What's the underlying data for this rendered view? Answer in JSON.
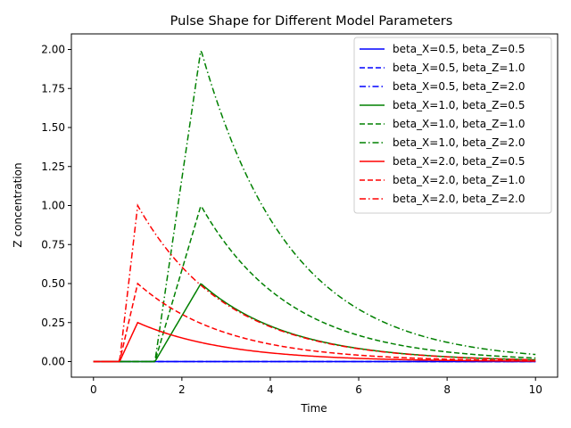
{
  "chart_data": {
    "type": "line",
    "title": "Pulse Shape for Different Model Parameters",
    "xlabel": "Time",
    "ylabel": "Z concentration",
    "xlim": [
      -0.5,
      10.5
    ],
    "ylim": [
      -0.1,
      2.1
    ],
    "xticks": [
      0,
      2,
      4,
      6,
      8,
      10
    ],
    "yticks": [
      0.0,
      0.25,
      0.5,
      0.75,
      1.0,
      1.25,
      1.5,
      1.75,
      2.0
    ],
    "ytick_labels": [
      "0.00",
      "0.25",
      "0.50",
      "0.75",
      "1.00",
      "1.25",
      "1.50",
      "1.75",
      "2.00"
    ],
    "grid": false,
    "legend_position": "top-right",
    "series": [
      {
        "name": "beta_X=0.5, beta_Z=0.5",
        "color": "#0000ff",
        "style": "solid",
        "onset": 10,
        "peak": 0.0,
        "peak_time": 10,
        "decay": 0.5
      },
      {
        "name": "beta_X=0.5, beta_Z=1.0",
        "color": "#0000ff",
        "style": "dashed",
        "onset": 10,
        "peak": 0.0,
        "peak_time": 10,
        "decay": 0.5
      },
      {
        "name": "beta_X=0.5, beta_Z=2.0",
        "color": "#0000ff",
        "style": "dashdot",
        "onset": 10,
        "peak": 0.0,
        "peak_time": 10,
        "decay": 0.5
      },
      {
        "name": "beta_X=1.0, beta_Z=0.5",
        "color": "#008000",
        "style": "solid",
        "onset": 1.39,
        "peak": 0.5,
        "peak_time": 2.43,
        "decay": 0.5
      },
      {
        "name": "beta_X=1.0, beta_Z=1.0",
        "color": "#008000",
        "style": "dashed",
        "onset": 1.39,
        "peak": 1.0,
        "peak_time": 2.43,
        "decay": 0.5
      },
      {
        "name": "beta_X=1.0, beta_Z=2.0",
        "color": "#008000",
        "style": "dashdot",
        "onset": 1.39,
        "peak": 2.0,
        "peak_time": 2.43,
        "decay": 0.5
      },
      {
        "name": "beta_X=2.0, beta_Z=0.5",
        "color": "#ff0000",
        "style": "solid",
        "onset": 0.59,
        "peak": 0.25,
        "peak_time": 1.0,
        "decay": 0.5
      },
      {
        "name": "beta_X=2.0, beta_Z=1.0",
        "color": "#ff0000",
        "style": "dashed",
        "onset": 0.59,
        "peak": 0.5,
        "peak_time": 1.0,
        "decay": 0.5
      },
      {
        "name": "beta_X=2.0, beta_Z=2.0",
        "color": "#ff0000",
        "style": "dashdot",
        "onset": 0.59,
        "peak": 1.0,
        "peak_time": 1.0,
        "decay": 0.5
      }
    ]
  }
}
